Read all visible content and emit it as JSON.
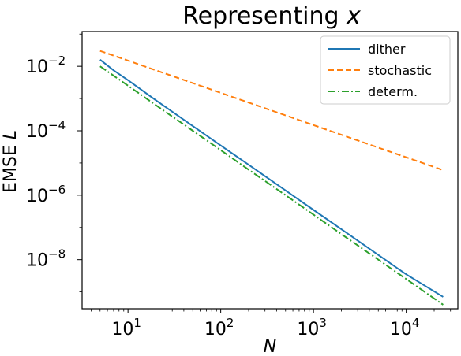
{
  "chart_data": {
    "type": "line",
    "title_text": "Representing ",
    "title_var": "x",
    "xlabel": "N",
    "ylabel_text": "EMSE ",
    "ylabel_var": "L",
    "xscale": "log",
    "yscale": "log",
    "xlim": [
      3.2,
      36000
    ],
    "ylim": [
      3e-10,
      0.12
    ],
    "x_ticks": [
      {
        "base": "10",
        "exp": "1",
        "value": 10
      },
      {
        "base": "10",
        "exp": "2",
        "value": 100
      },
      {
        "base": "10",
        "exp": "3",
        "value": 1000
      },
      {
        "base": "10",
        "exp": "4",
        "value": 10000
      }
    ],
    "y_ticks": [
      {
        "base": "10",
        "exp": "−2",
        "value": 0.01
      },
      {
        "base": "10",
        "exp": "−4",
        "value": 0.0001
      },
      {
        "base": "10",
        "exp": "−6",
        "value": 1e-06
      },
      {
        "base": "10",
        "exp": "−8",
        "value": 1e-08
      }
    ],
    "grid": false,
    "legend_position": "top-right",
    "series": [
      {
        "name": "dither",
        "color": "#1f77b4",
        "dash": "solid",
        "x": [
          5,
          7,
          10,
          20,
          50,
          100,
          200,
          500,
          1000,
          2000,
          5000,
          10000,
          25000
        ],
        "y": [
          0.016,
          0.0075,
          0.0037,
          0.00088,
          0.00014,
          3.5e-05,
          8.8e-06,
          1.4e-06,
          3.5e-07,
          8.8e-08,
          1.4e-08,
          3.5e-09,
          7e-10
        ]
      },
      {
        "name": "stochastic",
        "color": "#ff7f0e",
        "dash": "dashed",
        "x": [
          5,
          10,
          100,
          1000,
          10000,
          25000
        ],
        "y": [
          0.03,
          0.015,
          0.0015,
          0.00015,
          1.5e-05,
          6e-06
        ]
      },
      {
        "name": "determ.",
        "color": "#2ca02c",
        "dash": "dashdot",
        "x": [
          5,
          7,
          10,
          20,
          50,
          100,
          200,
          500,
          1000,
          2000,
          5000,
          10000,
          25000
        ],
        "y": [
          0.01,
          0.0051,
          0.0025,
          0.00062,
          0.0001,
          2.5e-05,
          6.2e-06,
          1e-06,
          2.5e-07,
          6.2e-08,
          1e-08,
          2.5e-09,
          4e-10
        ]
      }
    ]
  }
}
